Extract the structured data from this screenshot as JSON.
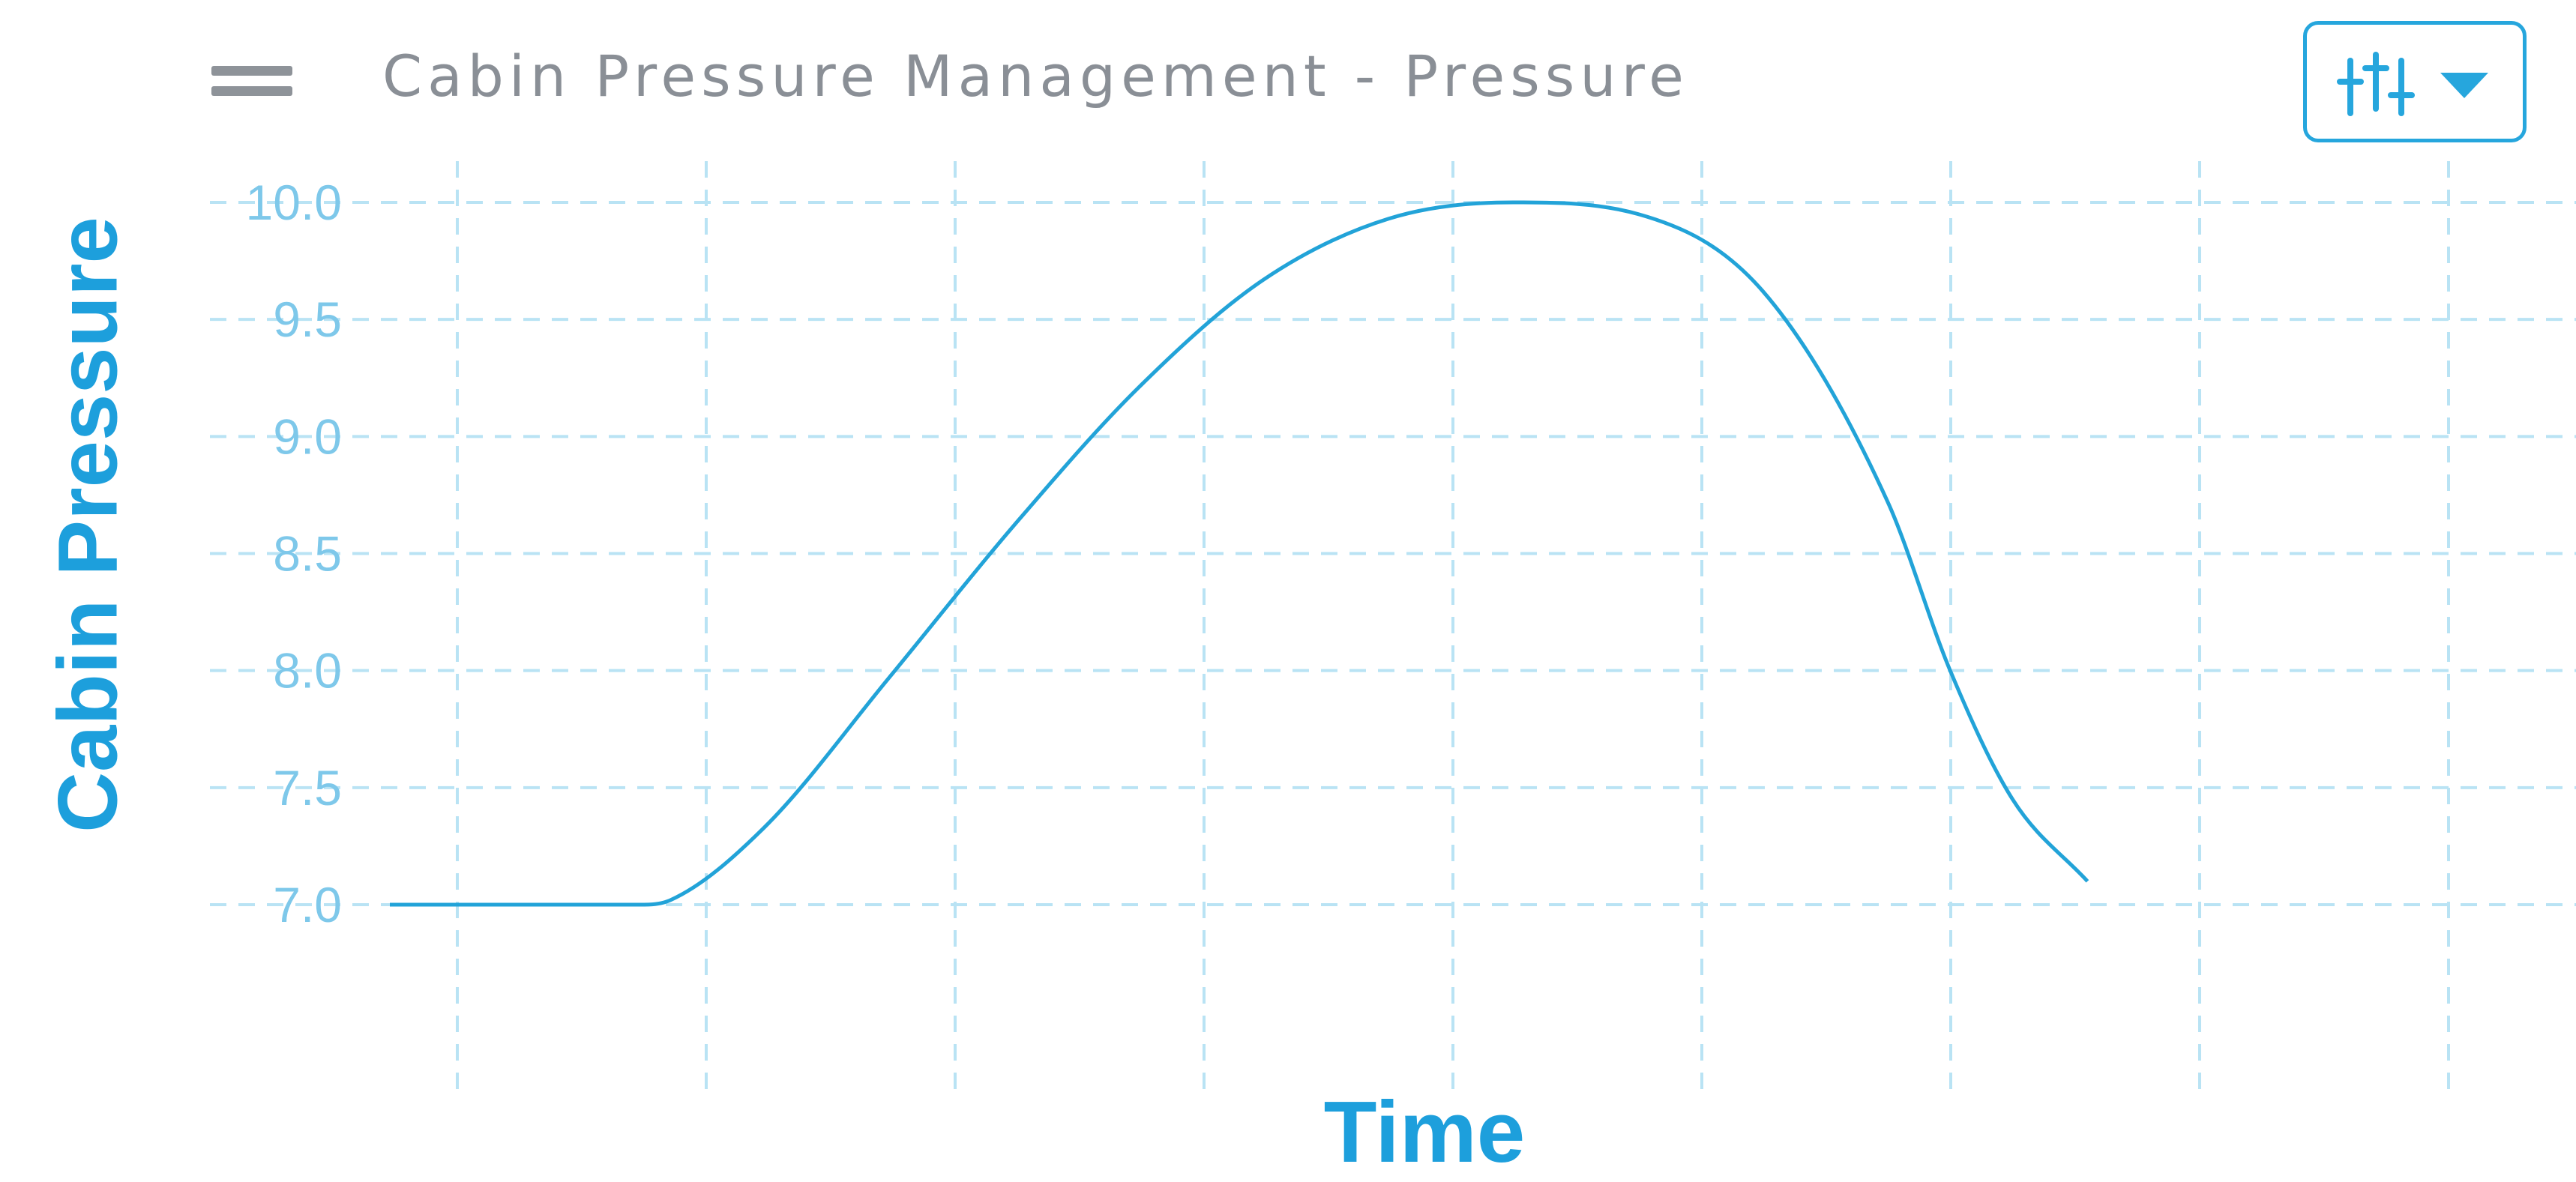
{
  "header": {
    "title": "Cabin Pressure Management - Pressure",
    "menu_icon": "hamburger-menu-icon",
    "settings_icon": "sliders-icon",
    "dropdown_icon": "caret-down-icon"
  },
  "colors": {
    "accent": "#26a6dd",
    "line": "#22a3d8",
    "grid": "#b9e3f4",
    "tick_text": "#7ec8ea",
    "title_text": "#8a8f96"
  },
  "chart_data": {
    "type": "line",
    "title": "Cabin Pressure Management - Pressure",
    "xlabel": "Time",
    "ylabel": "Cabin Pressure",
    "ylim": [
      7.0,
      10.0
    ],
    "yticks": [
      "10.0",
      "9.5",
      "9.0",
      "8.5",
      "8.0",
      "7.5",
      "7.0"
    ],
    "xticks_labeled": false,
    "x_gridlines": 9,
    "grid": true,
    "grid_style": "dashed",
    "legend": "none",
    "series": [
      {
        "x": [
          0,
          0.5,
          1,
          1.125,
          1.5,
          2,
          2.5,
          3,
          3.5,
          4,
          4.5,
          5,
          5.5,
          6,
          6.25,
          6.5,
          6.8
        ],
        "y": [
          7.0,
          7.0,
          7.0,
          7.02,
          7.33,
          7.97,
          8.62,
          9.21,
          9.67,
          9.93,
          10.0,
          9.95,
          9.62,
          8.72,
          8.0,
          7.45,
          7.1
        ]
      }
    ]
  }
}
